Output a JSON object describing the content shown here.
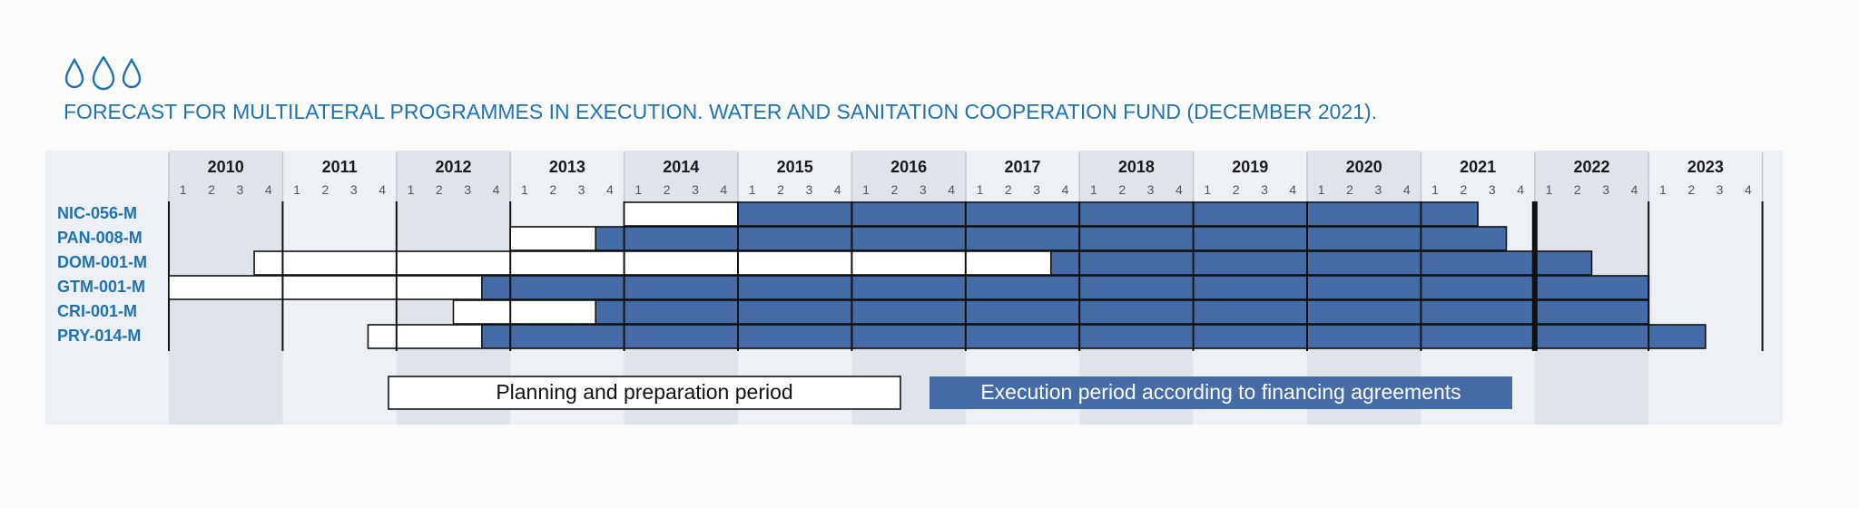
{
  "title": "FORECAST FOR MULTILATERAL PROGRAMMES IN EXECUTION. WATER AND SANITATION COOPERATION FUND (DECEMBER 2021).",
  "icon": "water-drops-icon",
  "colors": {
    "execution": "#456ca6",
    "planning": "#ffffff",
    "accent_text": "#1f72b0",
    "band_light": "#edf0f4",
    "band_dark": "#dfe3ea"
  },
  "chart_data": {
    "type": "gantt",
    "title": "FORECAST FOR MULTILATERAL PROGRAMMES IN EXECUTION. WATER AND SANITATION COOPERATION FUND (DECEMBER 2021).",
    "years": [
      "2010",
      "2011",
      "2012",
      "2013",
      "2014",
      "2015",
      "2016",
      "2017",
      "2018",
      "2019",
      "2020",
      "2021",
      "2022",
      "2023"
    ],
    "quarters": [
      "1",
      "2",
      "3",
      "4"
    ],
    "x_range": [
      "2010-Q1",
      "2023-Q4"
    ],
    "current_marker": "2021-Q4",
    "programmes": [
      {
        "code": "NIC-056-M",
        "planning_start": "2014-Q1",
        "execution_start": "2015-Q1",
        "end": "2021-Q2"
      },
      {
        "code": "PAN-008-M",
        "planning_start": "2013-Q1",
        "execution_start": "2013-Q4",
        "end": "2021-Q3"
      },
      {
        "code": "DOM-001-M",
        "planning_start": "2010-Q4",
        "execution_start": "2017-Q4",
        "end": "2022-Q2"
      },
      {
        "code": "GTM-001-M",
        "planning_start": "2010-Q1",
        "execution_start": "2012-Q4",
        "end": "2022-Q4"
      },
      {
        "code": "CRI-001-M",
        "planning_start": "2012-Q3",
        "execution_start": "2013-Q4",
        "end": "2022-Q4"
      },
      {
        "code": "PRY-014-M",
        "planning_start": "2011-Q4",
        "execution_start": "2012-Q4",
        "end": "2023-Q2"
      }
    ],
    "legend": [
      {
        "key": "planning",
        "label": "Planning and preparation period"
      },
      {
        "key": "execution",
        "label": "Execution period according to financing agreements"
      }
    ]
  }
}
